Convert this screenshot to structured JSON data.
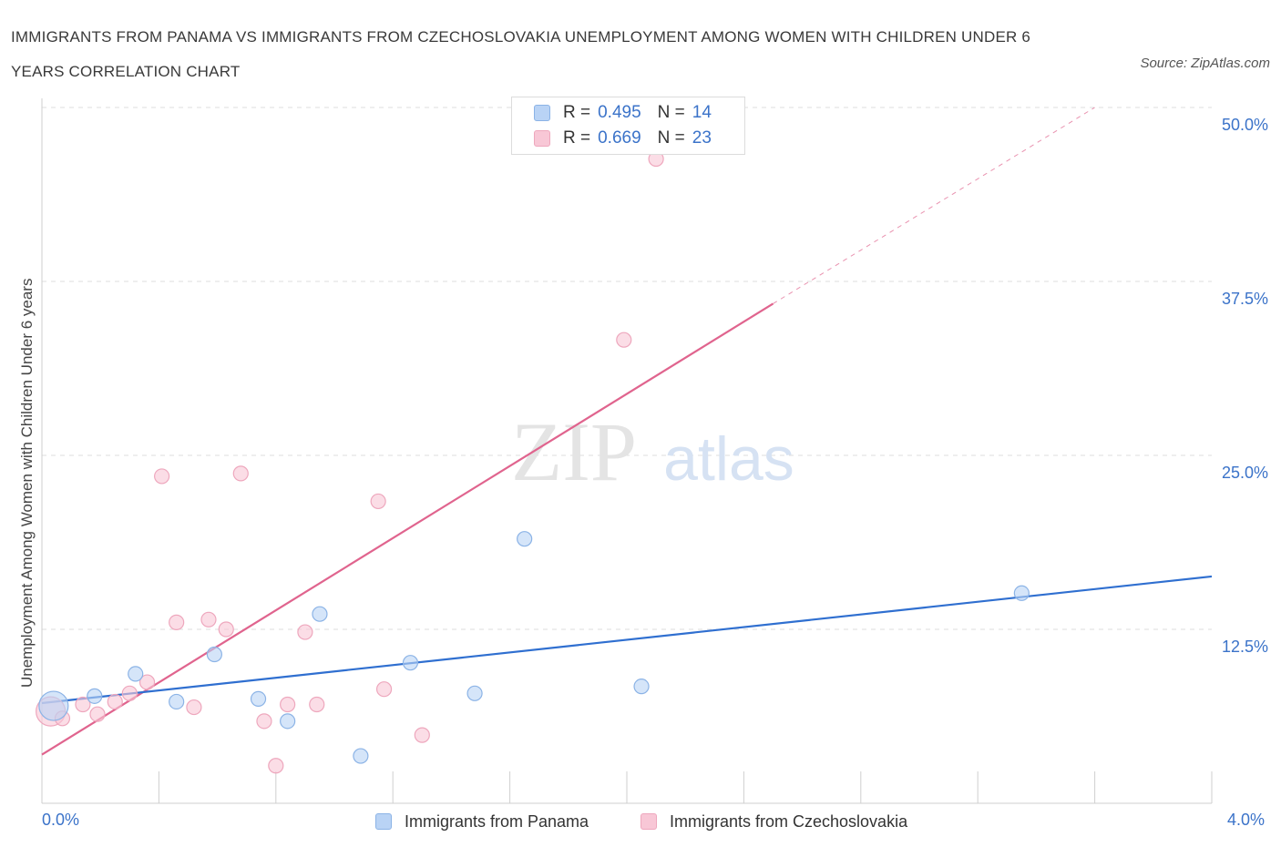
{
  "title": "IMMIGRANTS FROM PANAMA VS IMMIGRANTS FROM CZECHOSLOVAKIA UNEMPLOYMENT AMONG WOMEN WITH CHILDREN UNDER 6 YEARS CORRELATION CHART",
  "source": "Source: ZipAtlas.com",
  "watermark": {
    "zip": "ZIP",
    "atlas": "atlas"
  },
  "legend": {
    "rows": [
      {
        "r_label": "R =",
        "r_value": "0.495",
        "n_label": "N =",
        "n_value": "14"
      },
      {
        "r_label": "R =",
        "r_value": "0.669",
        "n_label": "N =",
        "n_value": "23"
      }
    ]
  },
  "colors": {
    "panama_fill": "#b9d3f5",
    "panama_stroke": "#8bb3e6",
    "panama_line": "#2f6fd0",
    "czech_fill": "#f8c7d6",
    "czech_stroke": "#eea7bd",
    "czech_line": "#e0648e",
    "axis_text": "#3b73c9",
    "grid": "#dddddd"
  },
  "chart_data": {
    "type": "scatter",
    "title": "IMMIGRANTS FROM PANAMA VS IMMIGRANTS FROM CZECHOSLOVAKIA UNEMPLOYMENT AMONG WOMEN WITH CHILDREN UNDER 6 YEARS CORRELATION CHART",
    "xlabel": "",
    "ylabel": "Unemployment Among Women with Children Under 6 years",
    "xlim": [
      0,
      4.0
    ],
    "ylim": [
      0,
      50.0
    ],
    "x_tick_labels": [
      "0.0%",
      "4.0%"
    ],
    "y_tick_labels": [
      "12.5%",
      "25.0%",
      "37.5%",
      "50.0%"
    ],
    "y_ticks": [
      12.5,
      25.0,
      37.5,
      50.0
    ],
    "grid": true,
    "legend_position": "top-center",
    "series": [
      {
        "name": "Immigrants from Panama",
        "r": 0.495,
        "n": 14,
        "points": [
          {
            "x": 0.04,
            "y": 7.0,
            "large": true
          },
          {
            "x": 0.18,
            "y": 7.7
          },
          {
            "x": 0.32,
            "y": 9.3
          },
          {
            "x": 0.46,
            "y": 7.3
          },
          {
            "x": 0.59,
            "y": 10.7
          },
          {
            "x": 0.74,
            "y": 7.5
          },
          {
            "x": 0.84,
            "y": 5.9
          },
          {
            "x": 0.95,
            "y": 13.6
          },
          {
            "x": 1.09,
            "y": 3.4
          },
          {
            "x": 1.26,
            "y": 10.1
          },
          {
            "x": 1.48,
            "y": 7.9
          },
          {
            "x": 1.65,
            "y": 19.0
          },
          {
            "x": 2.05,
            "y": 8.4
          },
          {
            "x": 3.35,
            "y": 15.1
          }
        ],
        "trend": {
          "x1": 0.0,
          "y1": 7.2,
          "x2": 4.0,
          "y2": 16.3
        }
      },
      {
        "name": "Immigrants from Czechoslovakia",
        "r": 0.669,
        "n": 23,
        "points": [
          {
            "x": 0.03,
            "y": 6.6,
            "large": true
          },
          {
            "x": 0.07,
            "y": 6.1
          },
          {
            "x": 0.14,
            "y": 7.1
          },
          {
            "x": 0.19,
            "y": 6.4
          },
          {
            "x": 0.25,
            "y": 7.3
          },
          {
            "x": 0.3,
            "y": 7.9
          },
          {
            "x": 0.36,
            "y": 8.7
          },
          {
            "x": 0.41,
            "y": 23.5
          },
          {
            "x": 0.46,
            "y": 13.0
          },
          {
            "x": 0.52,
            "y": 6.9
          },
          {
            "x": 0.57,
            "y": 13.2
          },
          {
            "x": 0.63,
            "y": 12.5
          },
          {
            "x": 0.68,
            "y": 23.7
          },
          {
            "x": 0.76,
            "y": 5.9
          },
          {
            "x": 0.8,
            "y": 2.7
          },
          {
            "x": 0.84,
            "y": 7.1
          },
          {
            "x": 0.9,
            "y": 12.3
          },
          {
            "x": 0.94,
            "y": 7.1
          },
          {
            "x": 1.15,
            "y": 21.7
          },
          {
            "x": 1.17,
            "y": 8.2
          },
          {
            "x": 1.3,
            "y": 4.9
          },
          {
            "x": 1.99,
            "y": 33.3
          },
          {
            "x": 2.1,
            "y": 46.3
          }
        ],
        "trend": {
          "x1": 0.0,
          "y1": 3.5,
          "x2": 2.5,
          "y2": 35.9
        },
        "trend_extension": {
          "x1": 2.5,
          "y1": 35.9,
          "x2": 3.6,
          "y2": 50.0
        }
      }
    ]
  }
}
